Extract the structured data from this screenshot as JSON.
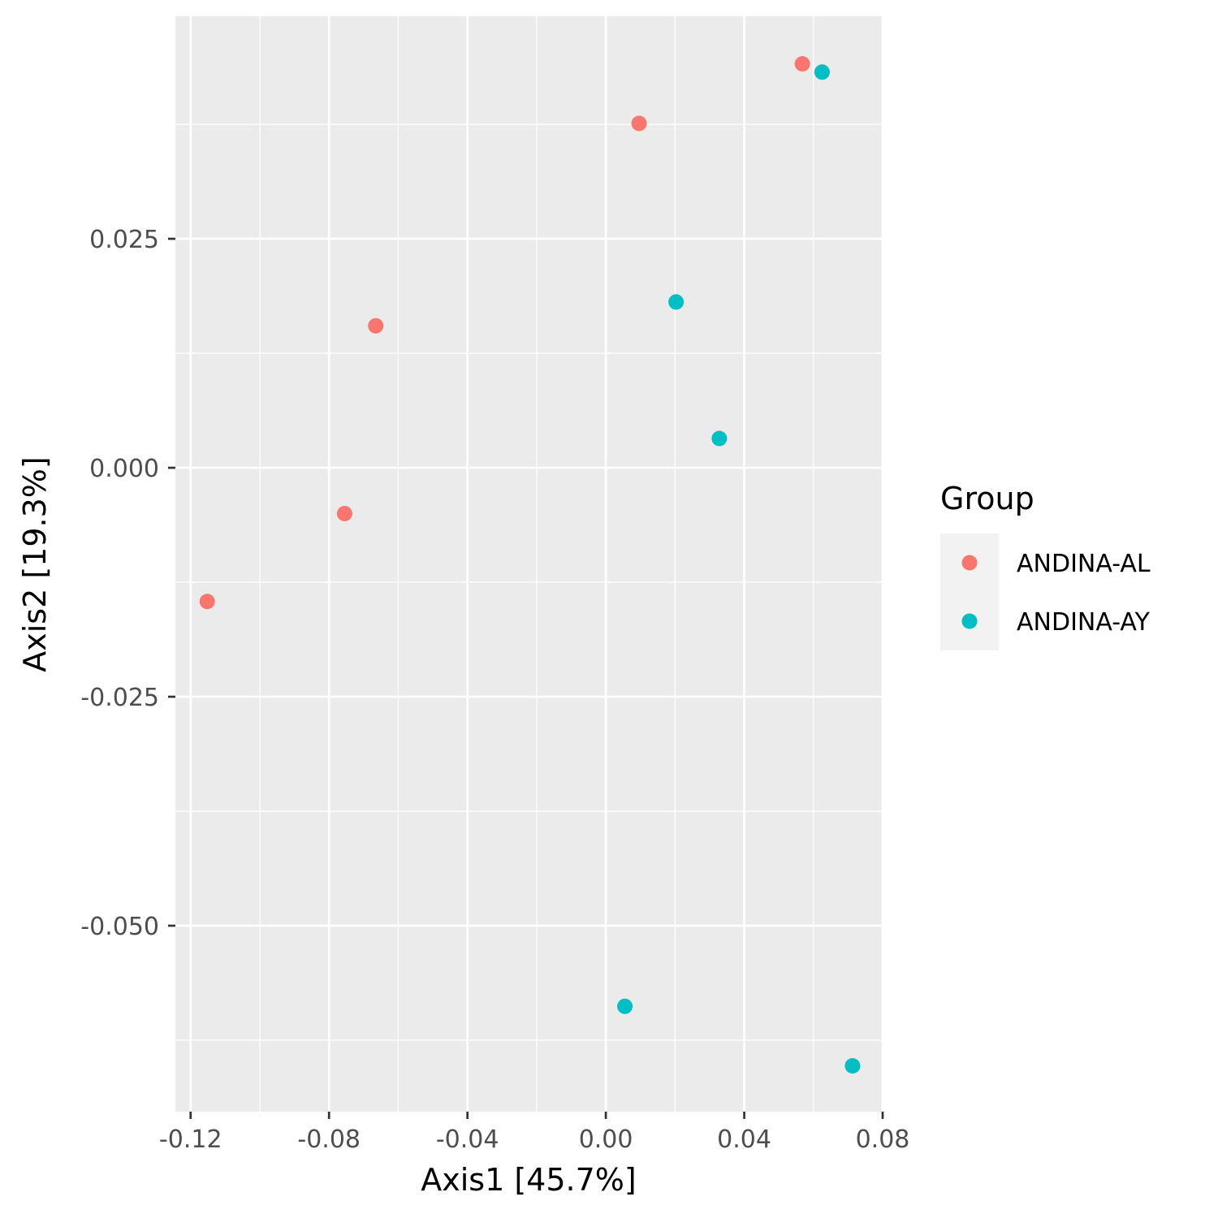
{
  "chart_data": {
    "type": "scatter",
    "xlabel": "Axis1   [45.7%]",
    "ylabel": "Axis2   [19.3%]",
    "xlim": [
      -0.1244,
      0.08
    ],
    "ylim": [
      -0.0703,
      0.0493
    ],
    "x_ticks": [
      -0.12,
      -0.08,
      -0.04,
      0.0,
      0.04,
      0.08
    ],
    "x_tick_labels": [
      "-0.12",
      "-0.08",
      "-0.04",
      "0.00",
      "0.04",
      "0.08"
    ],
    "y_ticks": [
      0.025,
      0.0,
      -0.025,
      -0.05
    ],
    "y_tick_labels": [
      "0.025",
      "0.000",
      "-0.025",
      "-0.050"
    ],
    "grid": true,
    "legend": {
      "title": "Group",
      "position": "right"
    },
    "series": [
      {
        "name": "ANDINA-AL",
        "color": "#F8766D",
        "points": [
          {
            "x": 0.0568,
            "y": 0.0441
          },
          {
            "x": 0.0096,
            "y": 0.0376
          },
          {
            "x": -0.0665,
            "y": 0.0155
          },
          {
            "x": -0.0755,
            "y": -0.005
          },
          {
            "x": -0.1152,
            "y": -0.0146
          }
        ]
      },
      {
        "name": "ANDINA-AY",
        "color": "#00BFC4",
        "points": [
          {
            "x": 0.0625,
            "y": 0.0432
          },
          {
            "x": 0.0203,
            "y": 0.0181
          },
          {
            "x": 0.0328,
            "y": 0.0032
          },
          {
            "x": 0.0055,
            "y": -0.0588
          },
          {
            "x": 0.0713,
            "y": -0.0653
          }
        ]
      }
    ]
  }
}
